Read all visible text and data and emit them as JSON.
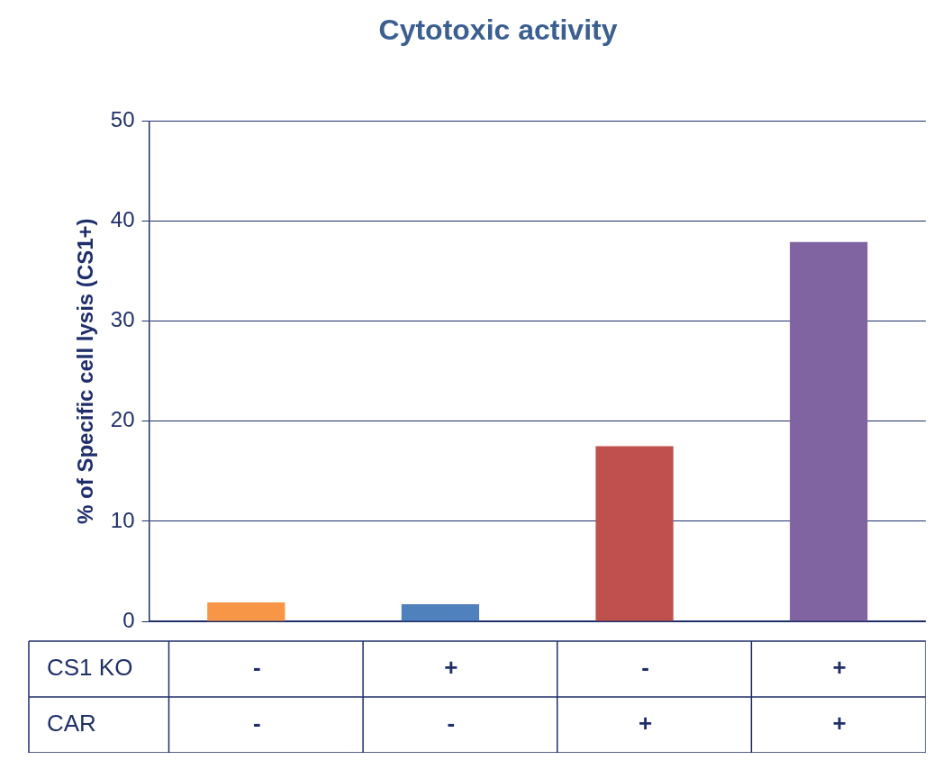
{
  "chart_data": {
    "type": "bar",
    "title": "Cytotoxic activity",
    "ylabel": "% of Specific cell lysis (CS1+)",
    "categories": [
      "-\n-",
      "+\n-",
      "-\n+",
      "+\n+"
    ],
    "values": [
      1.9,
      1.7,
      17.5,
      37.9
    ],
    "colors": [
      "#f79646",
      "#4f81bd",
      "#c0504d",
      "#8064a2"
    ],
    "ylim": [
      0,
      50
    ],
    "yticks": [
      0,
      10,
      20,
      30,
      40,
      50
    ],
    "grid": "y",
    "legend": false,
    "annotations": [
      "CS1 KO",
      "CAR"
    ]
  }
}
